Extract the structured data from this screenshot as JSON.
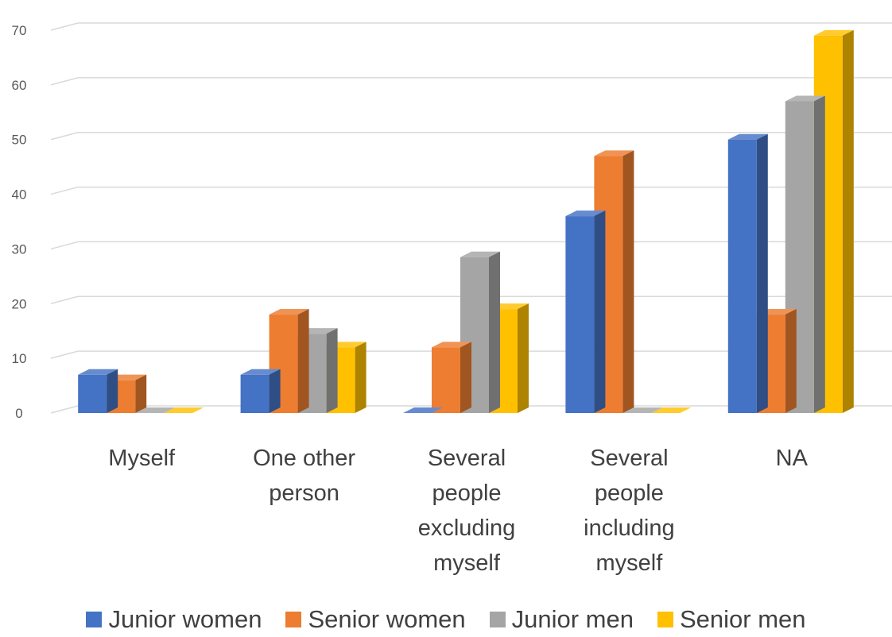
{
  "chart_data": {
    "type": "bar",
    "categories": [
      [
        "Myself"
      ],
      [
        "One other",
        "person"
      ],
      [
        "Several",
        "people",
        "excluding",
        "myself"
      ],
      [
        "Several",
        "people",
        "including",
        "myself"
      ],
      [
        "NA"
      ]
    ],
    "series": [
      {
        "name": "Junior women",
        "color": "#4472C4",
        "values": [
          7,
          7,
          0,
          36,
          50
        ]
      },
      {
        "name": "Senior women",
        "color": "#ED7D31",
        "values": [
          6,
          18,
          12,
          47,
          18
        ]
      },
      {
        "name": "Junior men",
        "color": "#A5A5A5",
        "values": [
          0,
          14.5,
          28.5,
          0,
          57
        ]
      },
      {
        "name": "Senior men",
        "color": "#FFC000",
        "values": [
          0,
          12,
          19,
          0,
          69
        ]
      }
    ],
    "yticks": [
      "0",
      "10",
      "20",
      "30",
      "40",
      "50",
      "60",
      "70"
    ],
    "ylim": [
      0,
      70
    ],
    "grid": true,
    "legend_position": "bottom",
    "title": "",
    "xlabel": "",
    "ylabel": ""
  }
}
